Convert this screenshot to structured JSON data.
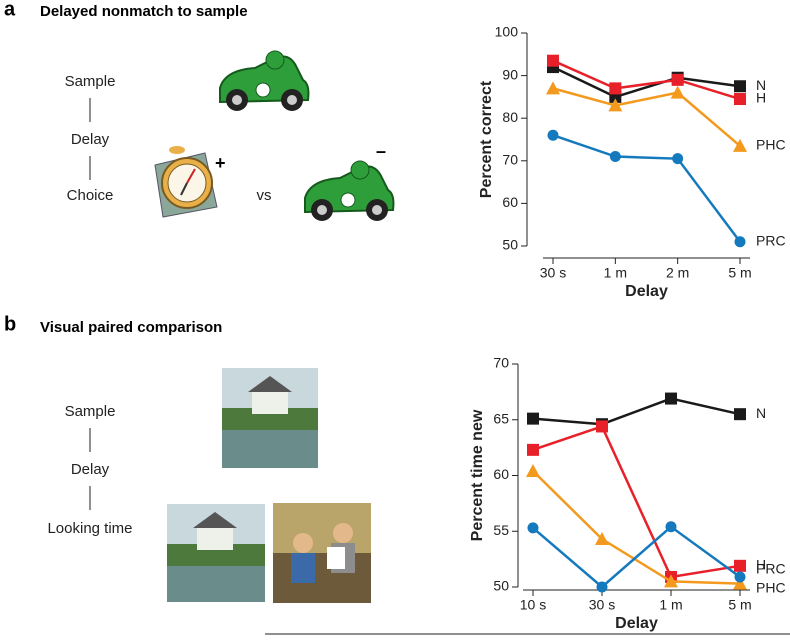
{
  "panels": [
    {
      "letter": "a",
      "title": "Delayed nonmatch to sample",
      "steps": [
        "Sample",
        "Delay",
        "Choice"
      ],
      "versus": "vs",
      "plus": "+",
      "minus": "–"
    },
    {
      "letter": "b",
      "title": "Visual paired comparison",
      "steps": [
        "Sample",
        "Delay",
        "Looking time"
      ]
    }
  ],
  "chart_data": [
    {
      "type": "line",
      "ylabel": "Percent correct",
      "xlabel": "Delay",
      "categories": [
        "30 s",
        "1 m",
        "2 m",
        "5 m"
      ],
      "ylim": [
        50,
        100
      ],
      "yticks": [
        50,
        60,
        70,
        80,
        90,
        100
      ],
      "series": [
        {
          "name": "N",
          "color": "#1a1a1a",
          "marker": "square",
          "values": [
            92,
            85,
            89.5,
            87.5
          ]
        },
        {
          "name": "H",
          "color": "#e8202a",
          "marker": "square",
          "values": [
            93.5,
            87,
            89,
            84.5
          ]
        },
        {
          "name": "PHC",
          "color": "#f39a1e",
          "marker": "triangle",
          "values": [
            87,
            83,
            86,
            73.5
          ]
        },
        {
          "name": "PRC",
          "color": "#1479bd",
          "marker": "circle",
          "values": [
            76,
            71,
            70.5,
            51
          ]
        }
      ]
    },
    {
      "type": "line",
      "ylabel": "Percent time new",
      "xlabel": "Delay",
      "categories": [
        "10 s",
        "30 s",
        "1 m",
        "5 m"
      ],
      "ylim": [
        50,
        70
      ],
      "yticks": [
        50,
        55,
        60,
        65,
        70
      ],
      "series": [
        {
          "name": "N",
          "color": "#1a1a1a",
          "marker": "square",
          "values": [
            65.1,
            64.6,
            66.9,
            65.5
          ]
        },
        {
          "name": "H",
          "color": "#e8202a",
          "marker": "square",
          "values": [
            62.3,
            64.4,
            50.9,
            51.9
          ]
        },
        {
          "name": "PHC",
          "color": "#f39a1e",
          "marker": "triangle",
          "values": [
            60.4,
            54.3,
            50.5,
            50.3
          ]
        },
        {
          "name": "PRC",
          "color": "#1479bd",
          "marker": "circle",
          "values": [
            55.3,
            50,
            55.4,
            50.9
          ]
        }
      ]
    }
  ]
}
